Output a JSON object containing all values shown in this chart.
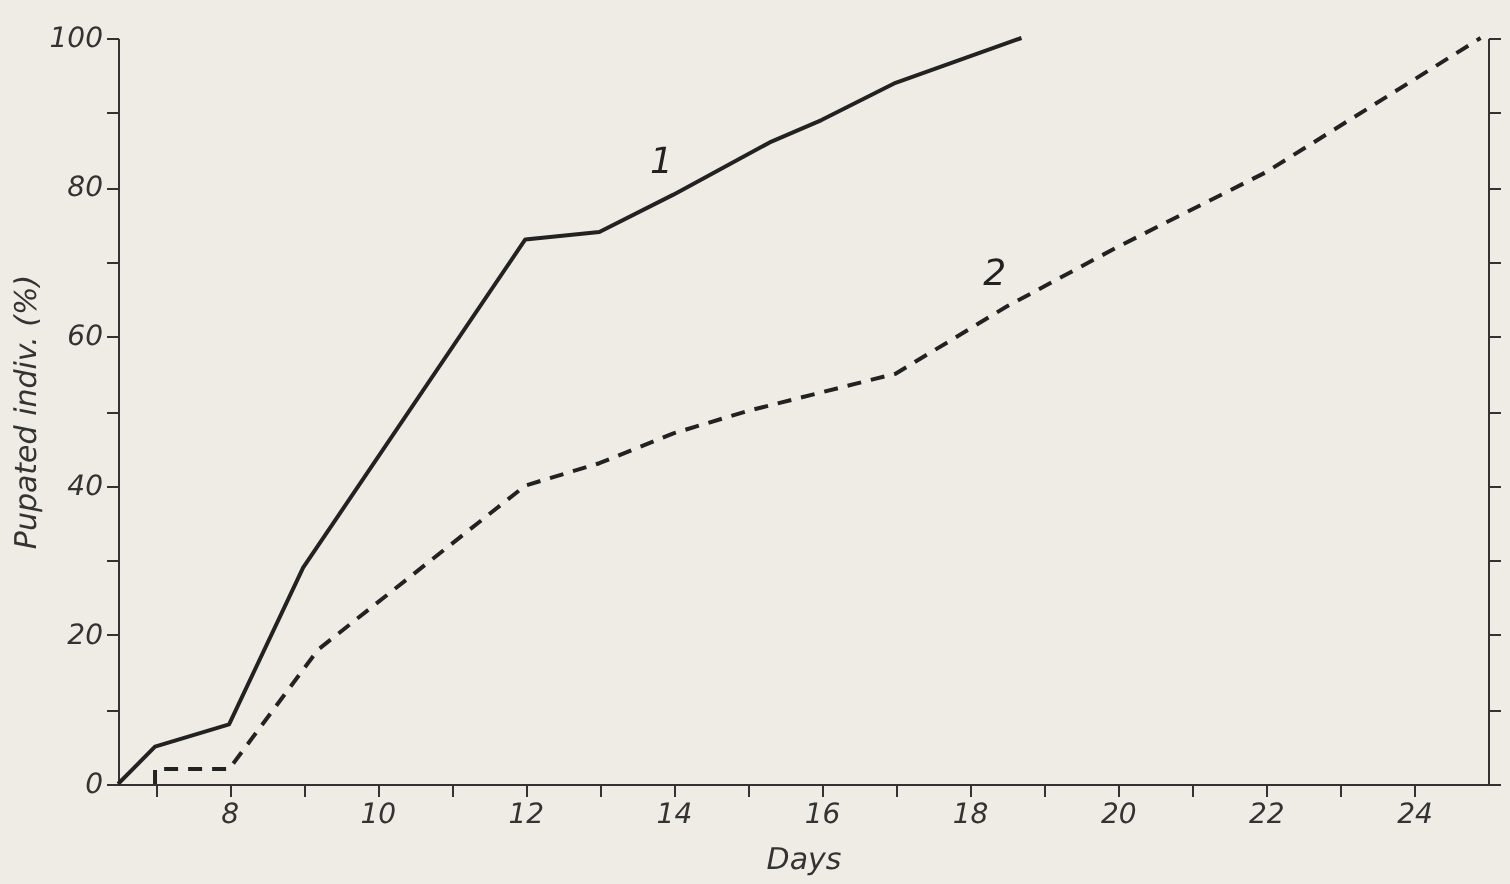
{
  "chart_data": {
    "type": "line",
    "xlabel": "Days",
    "ylabel": "Pupated indiv. (%)",
    "xlim": [
      6.5,
      25
    ],
    "ylim": [
      0,
      100
    ],
    "xticks": [
      {
        "value": 7,
        "label": null
      },
      8,
      {
        "value": 9,
        "label": null
      },
      10,
      {
        "value": 11,
        "label": null
      },
      12,
      {
        "value": 13,
        "label": null
      },
      14,
      {
        "value": 15,
        "label": null
      },
      16,
      {
        "value": 17,
        "label": null
      },
      18,
      {
        "value": 19,
        "label": null
      },
      20,
      {
        "value": 21,
        "label": null
      },
      22,
      {
        "value": 23,
        "label": null
      },
      24
    ],
    "yticks": [
      0,
      {
        "value": 10,
        "label": null
      },
      20,
      {
        "value": 30,
        "label": null
      },
      40,
      {
        "value": 50,
        "label": null
      },
      60,
      {
        "value": 70,
        "label": null
      },
      80,
      {
        "value": 90,
        "label": null
      },
      100
    ],
    "grid": false,
    "marker": "none",
    "series": [
      {
        "name": "1",
        "color": "#222222",
        "line_style": "solid",
        "x": [
          6.5,
          7,
          8,
          9,
          12,
          13,
          14,
          15.3,
          16,
          17,
          18.7
        ],
        "values": [
          0,
          5,
          8,
          29,
          73,
          74,
          79,
          86,
          89,
          94,
          100
        ]
      },
      {
        "name": "2",
        "color": "#222222",
        "line_style": "dashed",
        "x": [
          7,
          7,
          8,
          9.2,
          12,
          13,
          14,
          15,
          17,
          18.5,
          20,
          22,
          24.9
        ],
        "values": [
          0,
          2,
          2,
          18,
          40,
          43,
          47,
          50,
          55,
          64,
          72,
          82,
          100
        ]
      }
    ]
  }
}
